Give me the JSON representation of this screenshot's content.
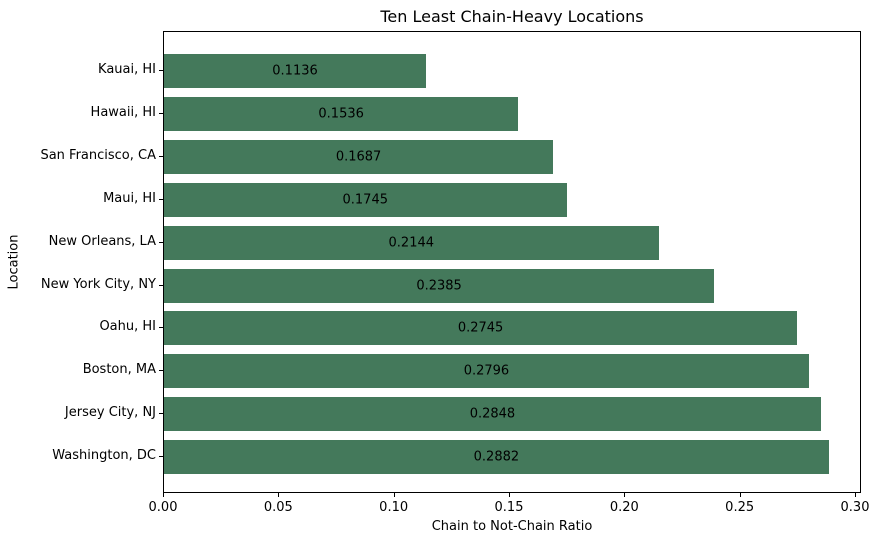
{
  "chart_data": {
    "type": "bar",
    "orientation": "horizontal",
    "title": "Ten Least Chain-Heavy Locations",
    "xlabel": "Chain to Not-Chain Ratio",
    "ylabel": "Location",
    "categories": [
      "Kauai, HI",
      "Hawaii, HI",
      "San Francisco, CA",
      "Maui, HI",
      "New Orleans, LA",
      "New York City, NY",
      "Oahu, HI",
      "Boston, MA",
      "Jersey City, NJ",
      "Washington, DC"
    ],
    "values": [
      0.1136,
      0.1536,
      0.1687,
      0.1745,
      0.2144,
      0.2385,
      0.2745,
      0.2796,
      0.2848,
      0.2882
    ],
    "value_labels": [
      "0.1136",
      "0.1536",
      "0.1687",
      "0.1745",
      "0.2144",
      "0.2385",
      "0.2745",
      "0.2796",
      "0.2848",
      "0.2882"
    ],
    "xticks": [
      0.0,
      0.05,
      0.1,
      0.15,
      0.2,
      0.25,
      0.3
    ],
    "xtick_labels": [
      "0.00",
      "0.05",
      "0.10",
      "0.15",
      "0.20",
      "0.25",
      "0.30"
    ],
    "xlim": [
      0,
      0.3026
    ],
    "grid": false,
    "legend": false,
    "bar_color": "#44795b",
    "label_position": "center"
  }
}
